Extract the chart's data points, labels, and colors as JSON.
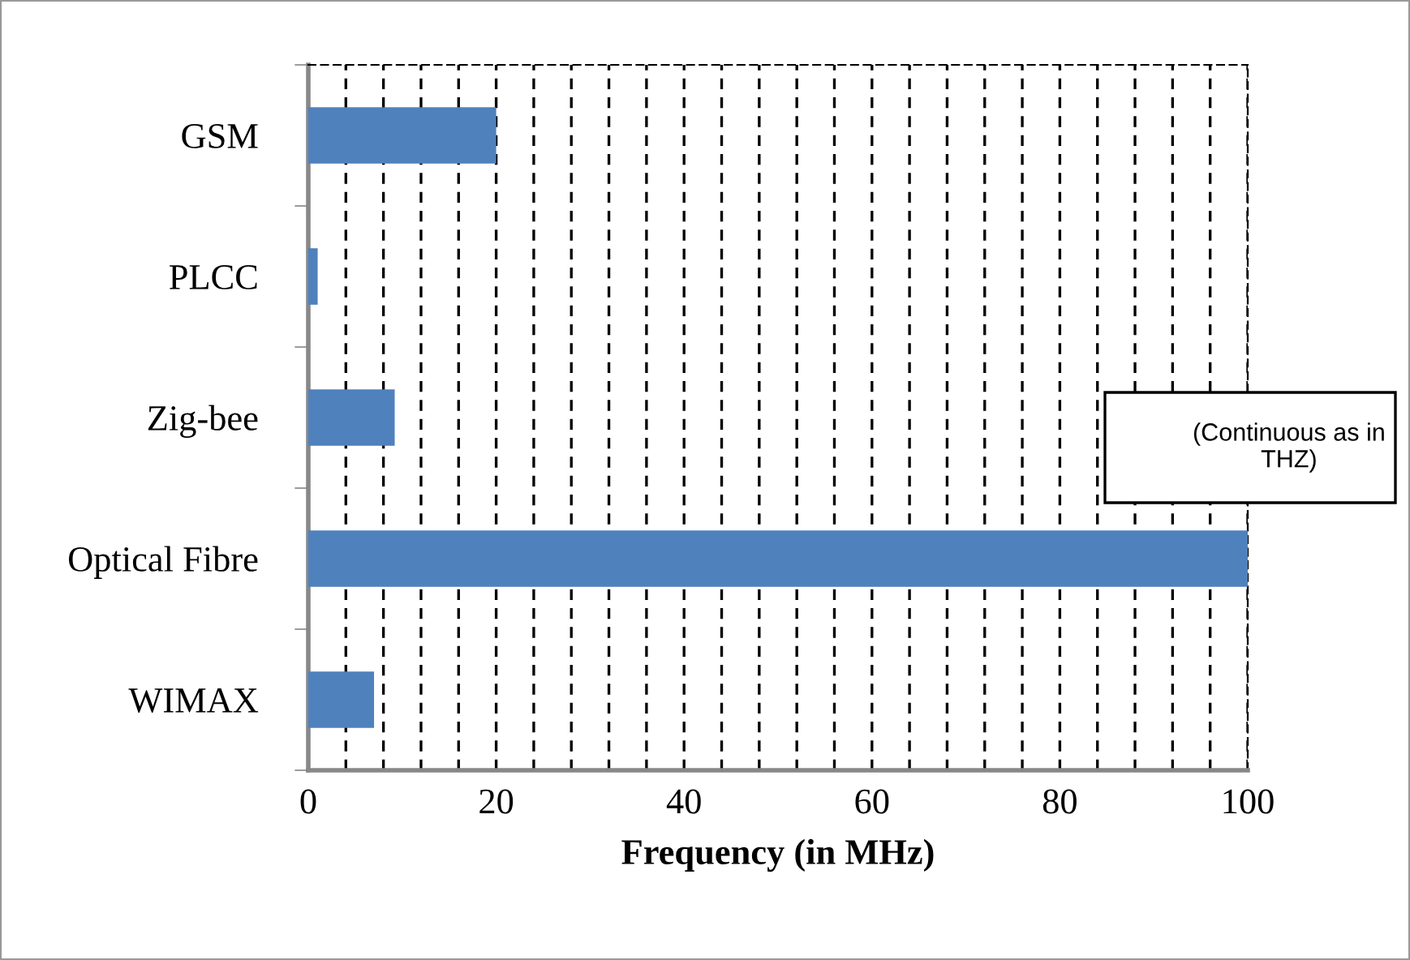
{
  "chart_data": {
    "type": "bar",
    "orientation": "horizontal",
    "xlabel": "Frequency (in MHz)",
    "categories": [
      "GSM",
      "PLCC",
      "Zig-bee",
      "Optical Fibre",
      "WIMAX"
    ],
    "values": [
      20,
      1,
      9.2,
      100,
      7
    ],
    "color": "#4f81bd",
    "xlim": [
      0,
      100
    ],
    "xticks": [
      0,
      {
        "value": 4,
        "label": null
      },
      {
        "value": 8,
        "label": null
      },
      {
        "value": 12,
        "label": null
      },
      {
        "value": 16,
        "label": null
      },
      20,
      {
        "value": 24,
        "label": null
      },
      {
        "value": 28,
        "label": null
      },
      {
        "value": 32,
        "label": null
      },
      {
        "value": 36,
        "label": null
      },
      40,
      {
        "value": 44,
        "label": null
      },
      {
        "value": 48,
        "label": null
      },
      {
        "value": 52,
        "label": null
      },
      {
        "value": 56,
        "label": null
      },
      60,
      {
        "value": 64,
        "label": null
      },
      {
        "value": 68,
        "label": null
      },
      {
        "value": 72,
        "label": null
      },
      {
        "value": 76,
        "label": null
      },
      80,
      {
        "value": 84,
        "label": null
      },
      {
        "value": 88,
        "label": null
      },
      {
        "value": 92,
        "label": null
      },
      {
        "value": 96,
        "label": null
      },
      100
    ],
    "grid": "x",
    "legend": false,
    "annotations": [
      "(Continuous as in THZ)"
    ]
  }
}
